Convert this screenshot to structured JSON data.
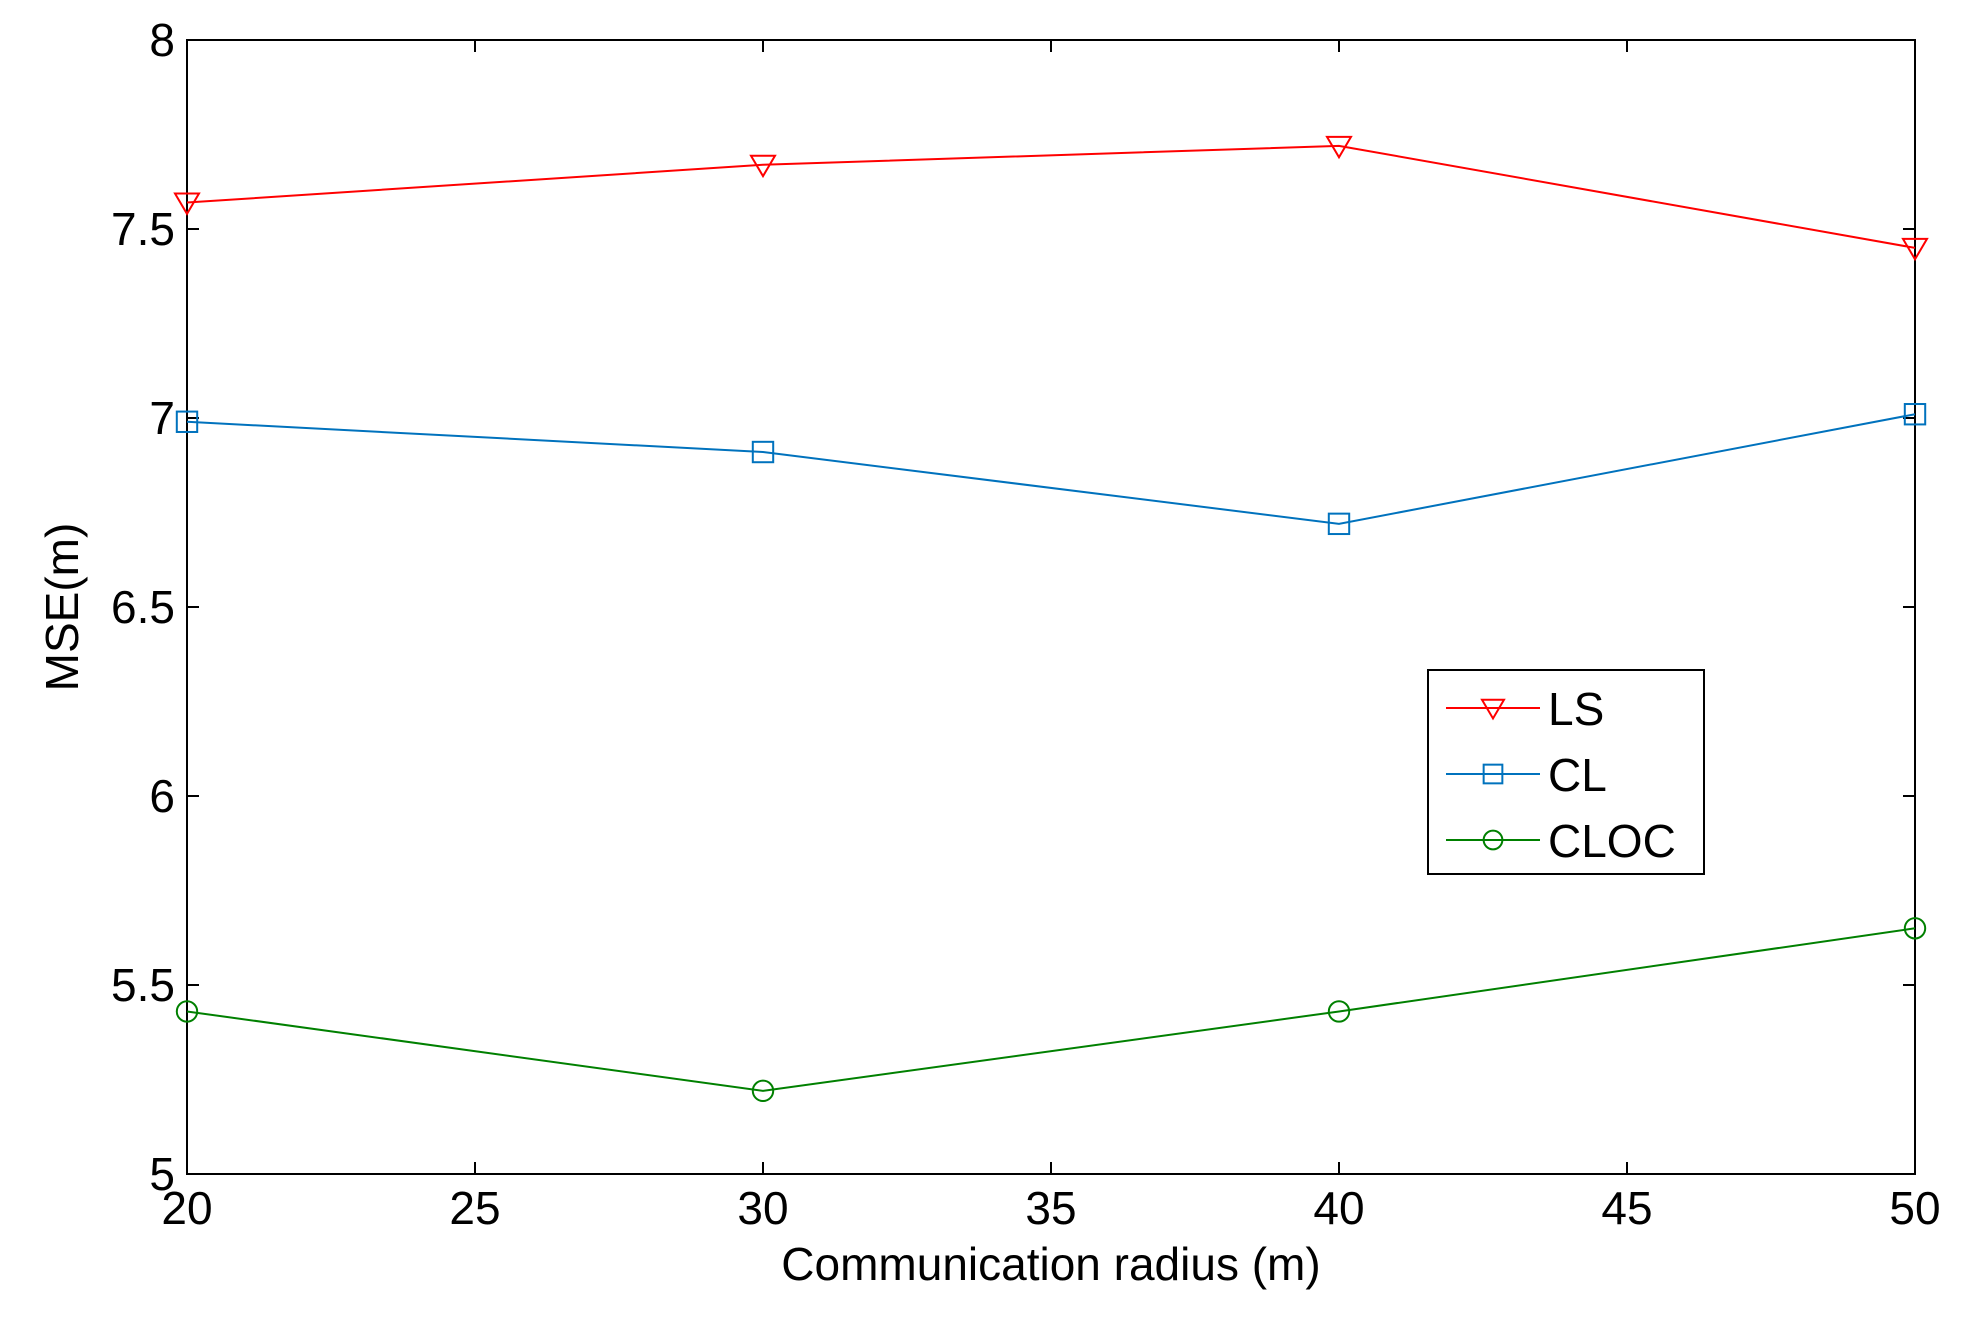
{
  "chart_data": {
    "type": "line",
    "title": "",
    "xlabel": "Communication radius (m)",
    "ylabel": "MSE(m)",
    "xlim": [
      20,
      50
    ],
    "ylim": [
      5,
      8
    ],
    "xticks": [
      20,
      25,
      30,
      35,
      40,
      45,
      50
    ],
    "xtick_labels": [
      "20",
      "25",
      "30",
      "35",
      "40",
      "45",
      "50"
    ],
    "yticks": [
      5,
      5.5,
      6,
      6.5,
      7,
      7.5,
      8
    ],
    "ytick_labels": [
      "5",
      "5.5",
      "6",
      "6.5",
      "7",
      "7.5",
      "8"
    ],
    "grid": false,
    "legend_position": "center-right",
    "x": [
      20,
      30,
      40,
      50
    ],
    "series": [
      {
        "name": "LS",
        "marker": "triangle-down",
        "color": "#ff0000",
        "values": [
          7.57,
          7.67,
          7.72,
          7.45
        ]
      },
      {
        "name": "CL",
        "marker": "square",
        "color": "#0072bd",
        "values": [
          6.99,
          6.91,
          6.72,
          7.01
        ]
      },
      {
        "name": "CLOC",
        "marker": "circle",
        "color": "#008000",
        "values": [
          5.43,
          5.22,
          5.43,
          5.65
        ]
      }
    ]
  }
}
